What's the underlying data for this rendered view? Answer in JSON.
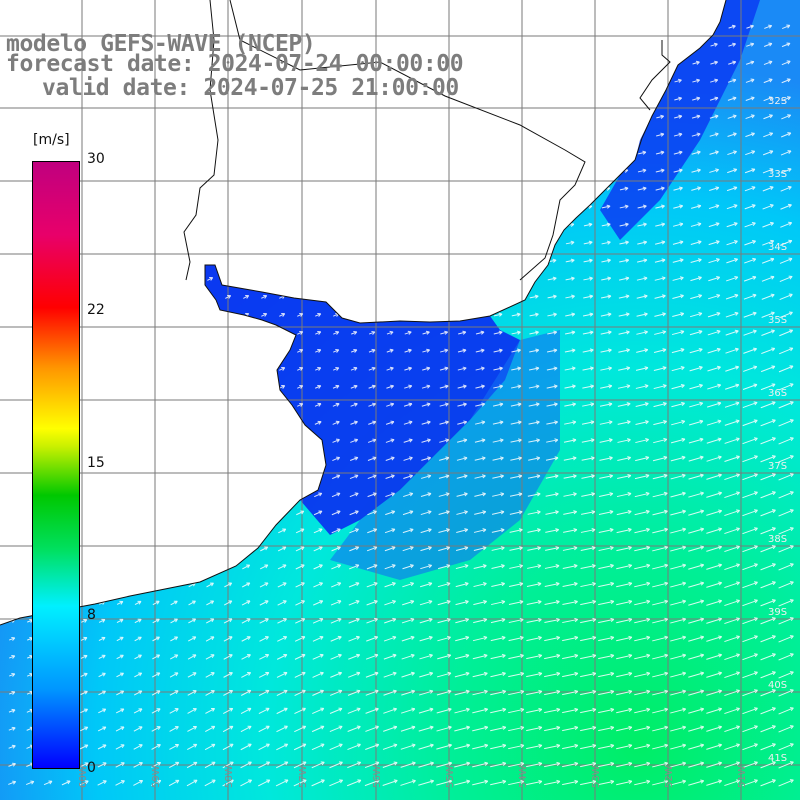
{
  "header": {
    "line1": "modelo GEFS-WAVE (NCEP)",
    "line2": "forecast date: 2024-07-24 00:00:00",
    "line3": "valid date: 2024-07-25 21:00:00"
  },
  "colorbar": {
    "unit": "[m/s]",
    "ticks": [
      "30",
      "22",
      "15",
      "8",
      "0"
    ],
    "tick_values": [
      30,
      22,
      15,
      8,
      0
    ],
    "min": 0,
    "max": 30,
    "colors": [
      "#0000ff",
      "#0096ff",
      "#00f0ff",
      "#00e060",
      "#00c800",
      "#ffff00",
      "#ff9600",
      "#ff0000",
      "#c0007f"
    ]
  },
  "map": {
    "variable": "wind speed and direction",
    "lat_labels": [
      "32S",
      "33S",
      "34S",
      "35S",
      "36S",
      "37S",
      "38S",
      "39S",
      "40S",
      "41S"
    ],
    "lon_labels": [
      "60W",
      "59W",
      "58W",
      "57W",
      "56W",
      "55W",
      "54W",
      "53W",
      "52W",
      "51W"
    ],
    "land_color": "#ffffff",
    "grid_color": "#7a7a7a",
    "arrow_color": "#ffffff"
  }
}
